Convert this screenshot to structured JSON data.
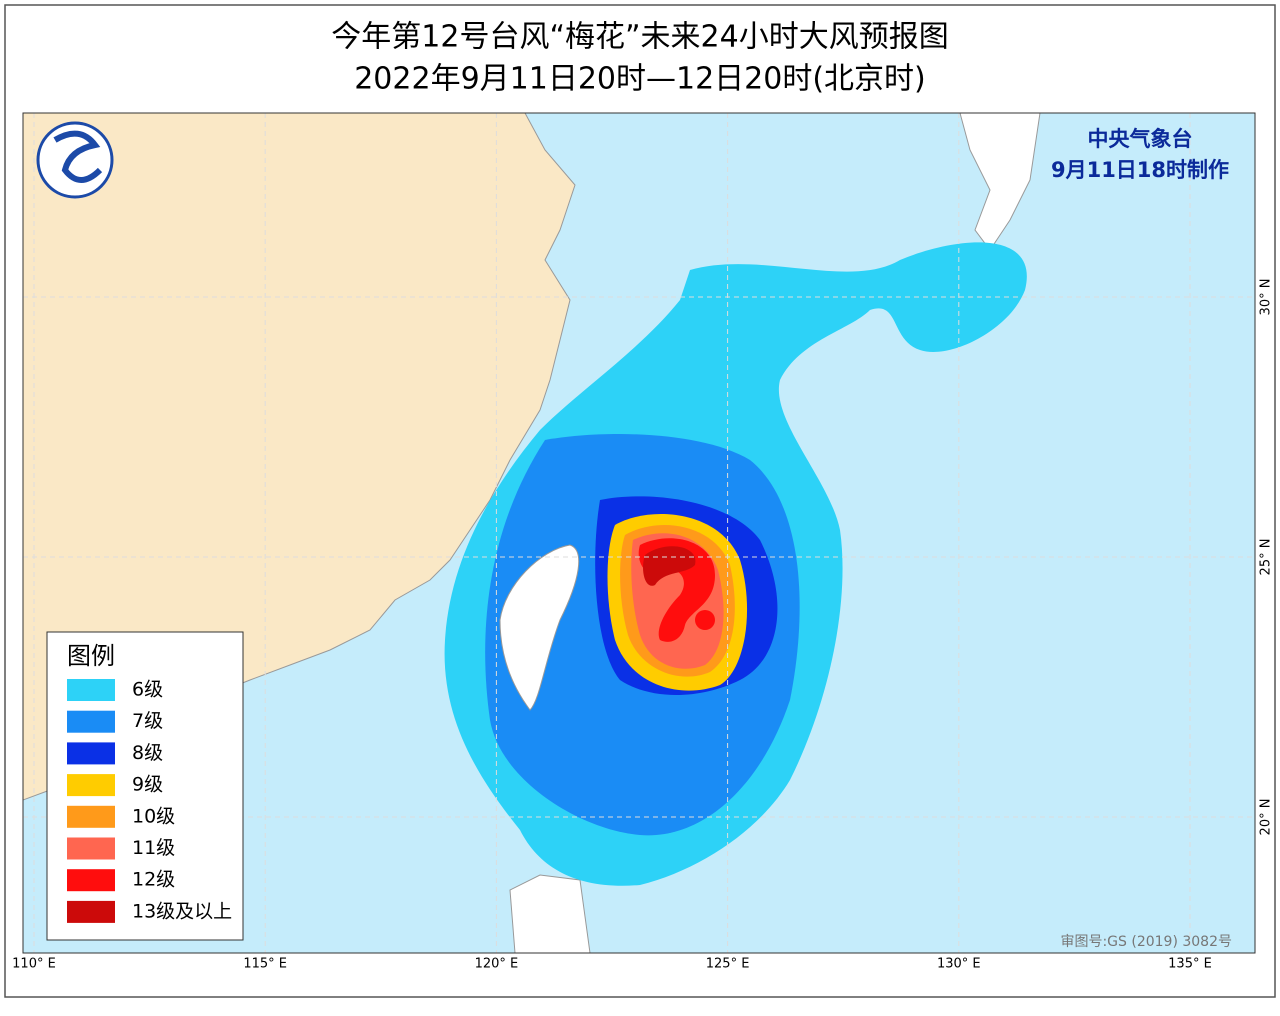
{
  "header": {
    "title": "今年第12号台风“梅花”未来24小时大风预报图",
    "subtitle": "2022年9月11日20时—12日20时(北京时)"
  },
  "map": {
    "agency": "中央气象台",
    "issued": "9月11日18时制作",
    "approval": "审图号:GS (2019) 3082号",
    "longitudes": [
      {
        "value": 110,
        "label": "110° E"
      },
      {
        "value": 115,
        "label": "115° E"
      },
      {
        "value": 120,
        "label": "120° E"
      },
      {
        "value": 125,
        "label": "125° E"
      },
      {
        "value": 130,
        "label": "130° E"
      },
      {
        "value": 135,
        "label": "135° E"
      }
    ],
    "latitudes": [
      {
        "value": 30,
        "label": "30° N"
      },
      {
        "value": 25,
        "label": "25° N"
      },
      {
        "value": 20,
        "label": "20° N"
      }
    ]
  },
  "legend": {
    "title": "图例",
    "items": [
      {
        "label": "6级",
        "color": "#2dd2f7"
      },
      {
        "label": "7级",
        "color": "#1a8cf5"
      },
      {
        "label": "8级",
        "color": "#0a30e6"
      },
      {
        "label": "9级",
        "color": "#ffcc00"
      },
      {
        "label": "10级",
        "color": "#ff9a1a"
      },
      {
        "label": "11级",
        "color": "#ff6650"
      },
      {
        "label": "12级",
        "color": "#ff0d0d"
      },
      {
        "label": "13级及以上",
        "color": "#cc0a0a"
      }
    ]
  }
}
